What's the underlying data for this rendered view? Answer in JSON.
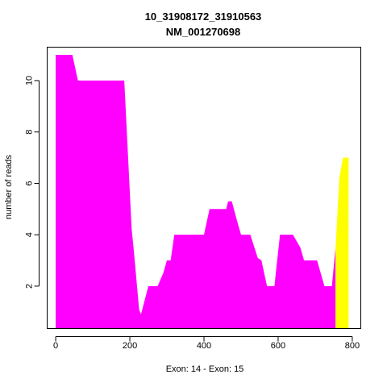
{
  "chart_data": {
    "type": "area",
    "title": "10_31908172_31910563",
    "subtitle": "NM_001270698",
    "xlabel": "Exon: 14 - Exon: 15",
    "ylabel": "number of reads",
    "xlim": [
      -23,
      823
    ],
    "ylim": [
      0.35,
      11.3
    ],
    "xticks": [
      0,
      200,
      400,
      600,
      800
    ],
    "yticks": [
      2,
      4,
      6,
      8,
      10
    ],
    "grid": false,
    "series": [
      {
        "color": "#ff00ff",
        "x": [
          0,
          0,
          45,
          60,
          185,
          205,
          210,
          225,
          230,
          250,
          275,
          290,
          300,
          310,
          320,
          400,
          415,
          460,
          465,
          475,
          490,
          500,
          525,
          545,
          555,
          570,
          590,
          605,
          640,
          660,
          670,
          690,
          705,
          725,
          745,
          755,
          755
        ],
        "y": [
          0.35,
          11,
          11,
          10,
          10,
          4.2,
          3.5,
          1.1,
          0.9,
          2,
          2,
          2.5,
          3,
          3,
          4,
          4,
          5,
          5,
          5.3,
          5.3,
          4.5,
          4,
          4,
          3.1,
          3,
          2,
          2,
          4,
          4,
          3.5,
          3,
          3,
          3,
          2,
          2,
          3.5,
          0.35
        ]
      },
      {
        "color": "#ffff00",
        "x": [
          755,
          755,
          765,
          775,
          790,
          790
        ],
        "y": [
          0.35,
          3.5,
          6.2,
          7,
          7,
          0.35
        ]
      }
    ]
  }
}
